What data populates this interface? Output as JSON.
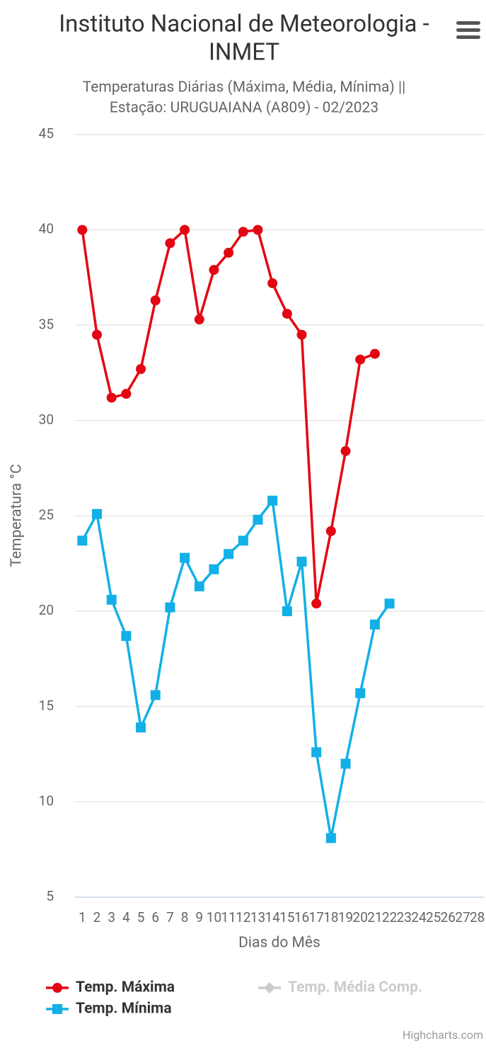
{
  "chart_data": {
    "type": "line",
    "title": [
      "Instituto Nacional de Meteorologia -",
      "INMET"
    ],
    "subtitle": [
      "Temperaturas Diárias (Máxima, Média, Mínima) ||",
      "Estação: URUGUAIANA (A809) - 02/2023"
    ],
    "x_label": "Dias do Mês",
    "y_label": "Temperatura °C",
    "categories": [
      1,
      2,
      3,
      4,
      5,
      6,
      7,
      8,
      9,
      10,
      11,
      12,
      13,
      14,
      15,
      16,
      17,
      18,
      19,
      20,
      21,
      22,
      23,
      24,
      25,
      26,
      27,
      28
    ],
    "series": [
      {
        "name": "Temp. Máxima",
        "color": "#e30613",
        "marker": "circle",
        "visible": true,
        "values": [
          40.0,
          34.5,
          31.2,
          31.4,
          32.7,
          36.3,
          39.3,
          40.0,
          35.3,
          37.9,
          38.8,
          39.9,
          40.0,
          37.2,
          35.6,
          34.5,
          20.4,
          24.2,
          28.4,
          33.2,
          33.5,
          null,
          null,
          null,
          null,
          null,
          null,
          null
        ]
      },
      {
        "name": "Temp. Média Comp.",
        "color": "#cccccc",
        "marker": "diamond",
        "visible": false,
        "values": [
          null,
          null,
          null,
          null,
          null,
          null,
          null,
          null,
          null,
          null,
          null,
          null,
          null,
          null,
          null,
          null,
          null,
          null,
          null,
          null,
          null,
          null,
          null,
          null,
          null,
          null,
          null,
          null
        ]
      },
      {
        "name": "Temp. Mínima",
        "color": "#12b0e6",
        "marker": "square",
        "visible": true,
        "values": [
          23.7,
          25.1,
          20.6,
          18.7,
          13.9,
          15.6,
          20.2,
          22.8,
          21.3,
          22.2,
          23.0,
          23.7,
          24.8,
          25.8,
          20.0,
          22.6,
          12.6,
          8.1,
          12.0,
          15.7,
          19.3,
          20.4,
          null,
          null,
          null,
          null,
          null,
          null
        ]
      }
    ],
    "ylim": [
      5,
      45
    ],
    "yticks": [
      5,
      10,
      15,
      20,
      25,
      30,
      35,
      40,
      45
    ],
    "grid": true,
    "legend": "bottom",
    "credits": "Highcharts.com"
  }
}
